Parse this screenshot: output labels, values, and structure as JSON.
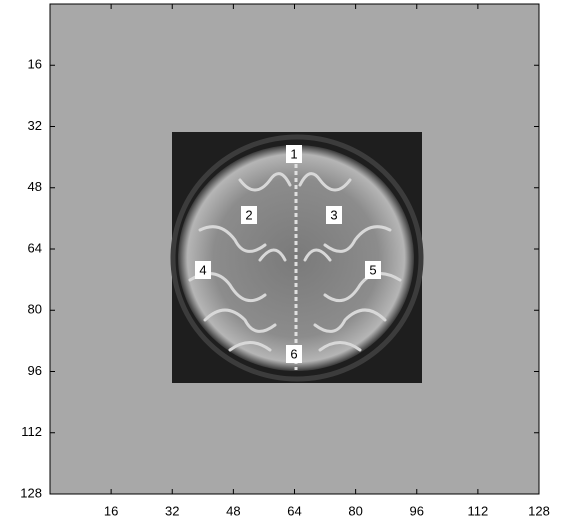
{
  "chart_data": {
    "type": "image",
    "xlim": [
      0,
      128
    ],
    "ylim": [
      0,
      128
    ],
    "y_reversed": true,
    "xticks": [
      16,
      32,
      48,
      64,
      80,
      96,
      112,
      128
    ],
    "yticks": [
      16,
      32,
      48,
      64,
      80,
      96,
      112,
      128
    ],
    "background": "#a8a8a8",
    "annotations": [
      "1",
      "2",
      "3",
      "4",
      "5",
      "6"
    ]
  }
}
